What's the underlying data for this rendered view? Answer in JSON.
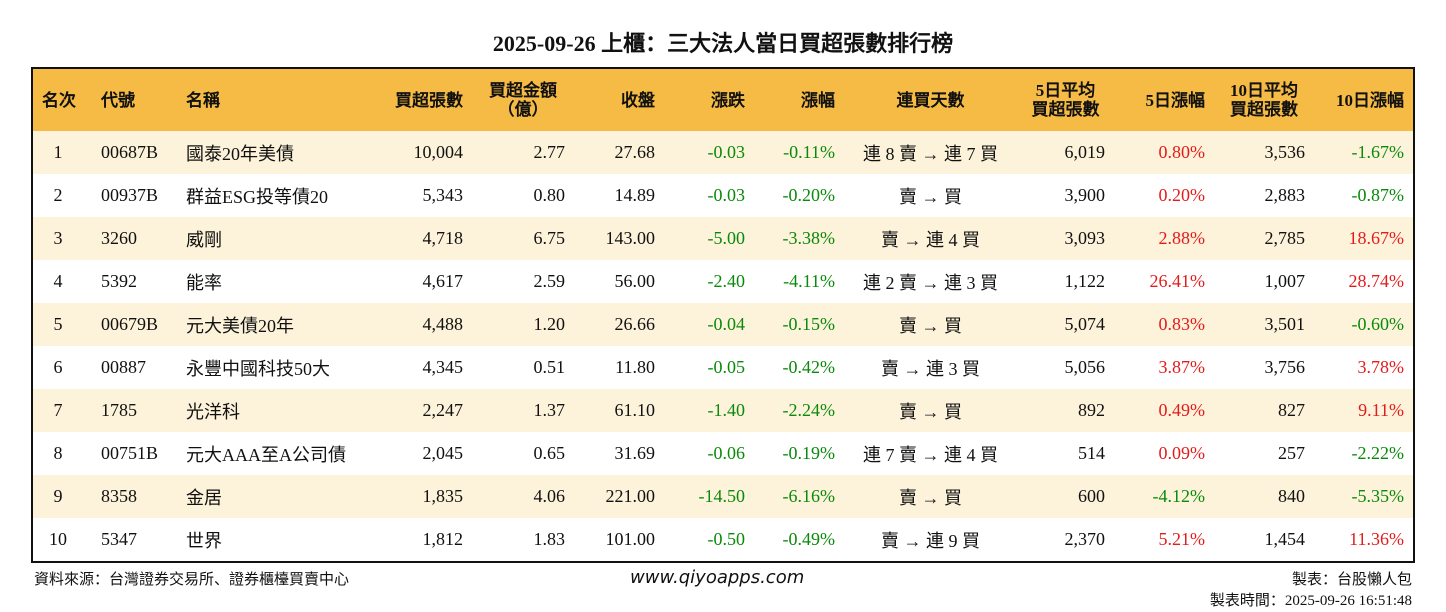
{
  "title": "2025-09-26 上櫃：三大法人當日買超張數排行榜",
  "table": {
    "header": [
      [
        "名次"
      ],
      [
        "代號"
      ],
      [
        "名稱"
      ],
      [
        "買超張數"
      ],
      [
        "買超金額",
        "（億）"
      ],
      [
        "收盤"
      ],
      [
        "漲跌"
      ],
      [
        "漲幅"
      ],
      [
        "連買天數"
      ],
      [
        "5日平均",
        "買超張數"
      ],
      [
        "5日漲幅"
      ],
      [
        "10日平均",
        "買超張數"
      ],
      [
        "10日漲幅"
      ]
    ],
    "rows": [
      [
        "1",
        "00687B",
        "國泰20年美債",
        "10,004",
        "2.77",
        "27.68",
        "-0.03",
        "-0.11%",
        "連 8 賣 → 連 7 買",
        "6,019",
        "0.80%",
        "3,536",
        "-1.67%"
      ],
      [
        "2",
        "00937B",
        "群益ESG投等債20",
        "5,343",
        "0.80",
        "14.89",
        "-0.03",
        "-0.20%",
        "賣 → 買",
        "3,900",
        "0.20%",
        "2,883",
        "-0.87%"
      ],
      [
        "3",
        "3260",
        "威剛",
        "4,718",
        "6.75",
        "143.00",
        "-5.00",
        "-3.38%",
        "賣 → 連 4 買",
        "3,093",
        "2.88%",
        "2,785",
        "18.67%"
      ],
      [
        "4",
        "5392",
        "能率",
        "4,617",
        "2.59",
        "56.00",
        "-2.40",
        "-4.11%",
        "連 2 賣 → 連 3 買",
        "1,122",
        "26.41%",
        "1,007",
        "28.74%"
      ],
      [
        "5",
        "00679B",
        "元大美債20年",
        "4,488",
        "1.20",
        "26.66",
        "-0.04",
        "-0.15%",
        "賣 → 買",
        "5,074",
        "0.83%",
        "3,501",
        "-0.60%"
      ],
      [
        "6",
        "00887",
        "永豐中國科技50大",
        "4,345",
        "0.51",
        "11.80",
        "-0.05",
        "-0.42%",
        "賣 → 連 3 買",
        "5,056",
        "3.87%",
        "3,756",
        "3.78%"
      ],
      [
        "7",
        "1785",
        "光洋科",
        "2,247",
        "1.37",
        "61.10",
        "-1.40",
        "-2.24%",
        "賣 → 買",
        "892",
        "0.49%",
        "827",
        "9.11%"
      ],
      [
        "8",
        "00751B",
        "元大AAA至A公司債",
        "2,045",
        "0.65",
        "31.69",
        "-0.06",
        "-0.19%",
        "連 7 賣 → 連 4 買",
        "514",
        "0.09%",
        "257",
        "-2.22%"
      ],
      [
        "9",
        "8358",
        "金居",
        "1,835",
        "4.06",
        "221.00",
        "-14.50",
        "-6.16%",
        "賣 → 買",
        "600",
        "-4.12%",
        "840",
        "-5.35%"
      ],
      [
        "10",
        "5347",
        "世界",
        "1,812",
        "1.83",
        "101.00",
        "-0.50",
        "-0.49%",
        "賣 → 連 9 買",
        "2,370",
        "5.21%",
        "1,454",
        "11.36%"
      ]
    ]
  },
  "footer": {
    "source": "資料來源：台灣證券交易所、證券櫃檯買賣中心",
    "website": "www.qiyoapps.com",
    "maker": "製表：台股懶人包",
    "time": "製表時間：2025-09-26 16:51:48"
  }
}
